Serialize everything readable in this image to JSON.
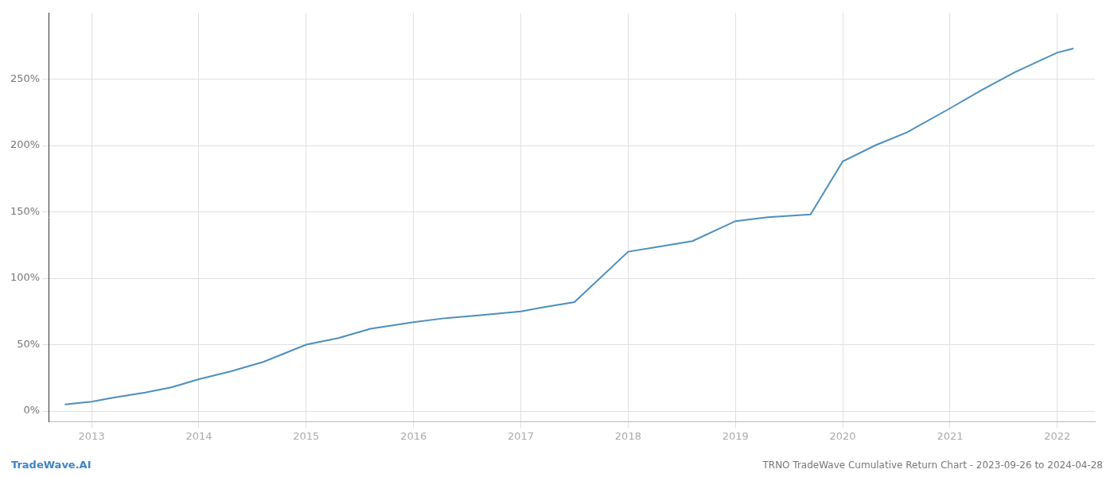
{
  "chart_data": {
    "type": "line",
    "title": "TRNO TradeWave Cumulative Return Chart - 2023-09-26 to 2024-04-28",
    "annotations": [
      {
        "text": "TradeWave.AI",
        "color": "#3d85c8"
      }
    ],
    "x": [
      2012.75,
      2013.0,
      2013.2,
      2013.5,
      2013.75,
      2014.0,
      2014.3,
      2014.6,
      2015.0,
      2015.3,
      2015.6,
      2016.0,
      2016.3,
      2016.6,
      2017.0,
      2017.2,
      2017.5,
      2018.0,
      2018.3,
      2018.6,
      2019.0,
      2019.3,
      2019.7,
      2020.0,
      2020.3,
      2020.6,
      2021.0,
      2021.3,
      2021.6,
      2022.0,
      2022.15
    ],
    "values": [
      5,
      7,
      10,
      14,
      18,
      24,
      30,
      37,
      50,
      55,
      62,
      67,
      70,
      72,
      75,
      78,
      82,
      120,
      124,
      128,
      143,
      146,
      148,
      188,
      200,
      210,
      228,
      242,
      255,
      270,
      273
    ],
    "color": "#4d8fbd",
    "xlim": [
      2012.6,
      2022.35
    ],
    "xticks": [
      2013,
      2014,
      2015,
      2016,
      2017,
      2018,
      2019,
      2020,
      2021,
      2022
    ],
    "ylim": [
      -8,
      300
    ],
    "yticks": [
      {
        "value": 0,
        "label": "0%"
      },
      {
        "value": 50,
        "label": "50%"
      },
      {
        "value": 100,
        "label": "100%"
      },
      {
        "value": 150,
        "label": "150%"
      },
      {
        "value": 200,
        "label": "200%"
      },
      {
        "value": 250,
        "label": "250%"
      }
    ],
    "grid": true
  }
}
